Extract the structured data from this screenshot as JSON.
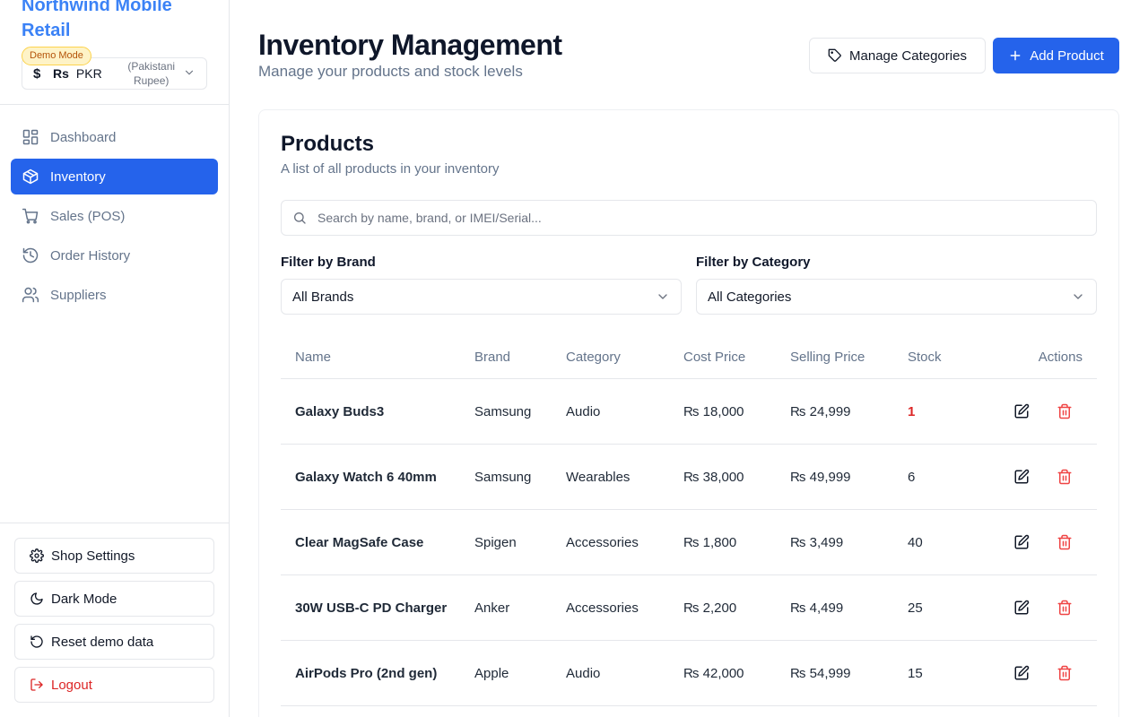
{
  "app": {
    "name": "Northwind Mobile Retail",
    "demo_badge": "Demo Mode",
    "currency": {
      "symbol": "Rs",
      "code": "PKR",
      "description": "(Pakistani Rupee)"
    }
  },
  "sidebar": {
    "items": [
      {
        "label": "Dashboard",
        "icon": "grid-icon",
        "active": false
      },
      {
        "label": "Inventory",
        "icon": "package-icon",
        "active": true
      },
      {
        "label": "Sales (POS)",
        "icon": "cart-icon",
        "active": false
      },
      {
        "label": "Order History",
        "icon": "history-icon",
        "active": false
      },
      {
        "label": "Suppliers",
        "icon": "users-icon",
        "active": false
      }
    ],
    "bottom": {
      "shop_settings": "Shop Settings",
      "dark_mode": "Dark Mode",
      "reset_demo": "Reset demo data",
      "logout": "Logout"
    }
  },
  "header": {
    "title": "Inventory Management",
    "subtitle": "Manage your products and stock levels",
    "manage_categories": "Manage Categories",
    "add_product": "Add Product"
  },
  "products_card": {
    "title": "Products",
    "description": "A list of all products in your inventory",
    "search_placeholder": "Search by name, brand, or IMEI/Serial...",
    "filter_brand_label": "Filter by Brand",
    "filter_brand_value": "All Brands",
    "filter_category_label": "Filter by Category",
    "filter_category_value": "All Categories"
  },
  "table": {
    "columns": [
      "Name",
      "Brand",
      "Category",
      "Cost Price",
      "Selling Price",
      "Stock",
      "Actions"
    ],
    "rows": [
      {
        "name": "Galaxy Buds3",
        "brand": "Samsung",
        "category": "Audio",
        "cost": "₨ 18,000",
        "selling": "₨ 24,999",
        "stock": "1",
        "low": true
      },
      {
        "name": "Galaxy Watch 6 40mm",
        "brand": "Samsung",
        "category": "Wearables",
        "cost": "₨ 38,000",
        "selling": "₨ 49,999",
        "stock": "6",
        "low": false
      },
      {
        "name": "Clear MagSafe Case",
        "brand": "Spigen",
        "category": "Accessories",
        "cost": "₨ 1,800",
        "selling": "₨ 3,499",
        "stock": "40",
        "low": false
      },
      {
        "name": "30W USB-C PD Charger",
        "brand": "Anker",
        "category": "Accessories",
        "cost": "₨ 2,200",
        "selling": "₨ 4,499",
        "stock": "25",
        "low": false
      },
      {
        "name": "AirPods Pro (2nd gen)",
        "brand": "Apple",
        "category": "Audio",
        "cost": "₨ 42,000",
        "selling": "₨ 54,999",
        "stock": "15",
        "low": false
      }
    ]
  },
  "colors": {
    "accent": "#2563eb",
    "brand_text": "#3b82f6",
    "danger": "#dc2626",
    "muted": "#64748b"
  }
}
